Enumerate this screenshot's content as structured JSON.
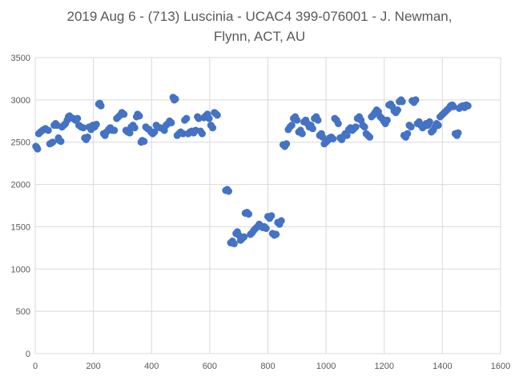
{
  "chart_data": {
    "type": "scatter",
    "title_lines": [
      "2019 Aug 6 - (713) Luscinia - UCAC4 399-076001 - J. Newman,",
      "Flynn, ACT, AU"
    ],
    "xlabel": "",
    "ylabel": "",
    "xlim": [
      0,
      1600
    ],
    "ylim": [
      0,
      3500
    ],
    "x_ticks": [
      "0",
      "200",
      "400",
      "600",
      "800",
      "1000",
      "1200",
      "1400",
      "1600"
    ],
    "y_ticks": [
      "0",
      "500",
      "1000",
      "1500",
      "2000",
      "2500",
      "3000",
      "3500"
    ],
    "grid": true,
    "legend": "none",
    "marker_color": "#4472C4",
    "gridline_color": "#D9D9D9",
    "series": [
      {
        "points": [
          [
            2,
            2450
          ],
          [
            5,
            2440
          ],
          [
            8,
            2420
          ],
          [
            12,
            2600
          ],
          [
            18,
            2620
          ],
          [
            25,
            2640
          ],
          [
            30,
            2650
          ],
          [
            35,
            2660
          ],
          [
            45,
            2640
          ],
          [
            50,
            2480
          ],
          [
            55,
            2490
          ],
          [
            60,
            2500
          ],
          [
            65,
            2700
          ],
          [
            70,
            2720
          ],
          [
            75,
            2700
          ],
          [
            80,
            2550
          ],
          [
            83,
            2520
          ],
          [
            88,
            2510
          ],
          [
            92,
            2680
          ],
          [
            98,
            2700
          ],
          [
            104,
            2720
          ],
          [
            110,
            2760
          ],
          [
            114,
            2800
          ],
          [
            118,
            2810
          ],
          [
            124,
            2790
          ],
          [
            130,
            2780
          ],
          [
            138,
            2760
          ],
          [
            145,
            2780
          ],
          [
            150,
            2700
          ],
          [
            158,
            2680
          ],
          [
            165,
            2670
          ],
          [
            170,
            2550
          ],
          [
            175,
            2530
          ],
          [
            180,
            2560
          ],
          [
            185,
            2680
          ],
          [
            192,
            2650
          ],
          [
            198,
            2700
          ],
          [
            204,
            2680
          ],
          [
            210,
            2710
          ],
          [
            218,
            2950
          ],
          [
            222,
            2960
          ],
          [
            226,
            2930
          ],
          [
            235,
            2600
          ],
          [
            240,
            2580
          ],
          [
            245,
            2620
          ],
          [
            252,
            2650
          ],
          [
            258,
            2670
          ],
          [
            265,
            2640
          ],
          [
            272,
            2640
          ],
          [
            280,
            2780
          ],
          [
            286,
            2800
          ],
          [
            292,
            2820
          ],
          [
            298,
            2850
          ],
          [
            305,
            2830
          ],
          [
            312,
            2640
          ],
          [
            318,
            2620
          ],
          [
            325,
            2610
          ],
          [
            330,
            2680
          ],
          [
            336,
            2700
          ],
          [
            342,
            2670
          ],
          [
            348,
            2800
          ],
          [
            352,
            2830
          ],
          [
            358,
            2810
          ],
          [
            364,
            2500
          ],
          [
            368,
            2520
          ],
          [
            374,
            2510
          ],
          [
            380,
            2680
          ],
          [
            386,
            2660
          ],
          [
            392,
            2650
          ],
          [
            398,
            2620
          ],
          [
            404,
            2600
          ],
          [
            410,
            2620
          ],
          [
            416,
            2700
          ],
          [
            422,
            2680
          ],
          [
            430,
            2670
          ],
          [
            438,
            2660
          ],
          [
            444,
            2640
          ],
          [
            450,
            2700
          ],
          [
            456,
            2720
          ],
          [
            462,
            2750
          ],
          [
            468,
            2730
          ],
          [
            474,
            3030
          ],
          [
            478,
            3000
          ],
          [
            482,
            3010
          ],
          [
            488,
            2580
          ],
          [
            494,
            2600
          ],
          [
            500,
            2620
          ],
          [
            508,
            2600
          ],
          [
            514,
            2760
          ],
          [
            520,
            2780
          ],
          [
            526,
            2600
          ],
          [
            532,
            2620
          ],
          [
            538,
            2630
          ],
          [
            545,
            2610
          ],
          [
            552,
            2640
          ],
          [
            558,
            2800
          ],
          [
            562,
            2780
          ],
          [
            568,
            2630
          ],
          [
            574,
            2600
          ],
          [
            580,
            2790
          ],
          [
            586,
            2810
          ],
          [
            592,
            2830
          ],
          [
            598,
            2780
          ],
          [
            604,
            2700
          ],
          [
            610,
            2670
          ],
          [
            616,
            2850
          ],
          [
            620,
            2840
          ],
          [
            626,
            2820
          ],
          [
            655,
            1930
          ],
          [
            660,
            1940
          ],
          [
            665,
            1920
          ],
          [
            672,
            1310
          ],
          [
            678,
            1330
          ],
          [
            684,
            1300
          ],
          [
            690,
            1420
          ],
          [
            695,
            1440
          ],
          [
            700,
            1400
          ],
          [
            706,
            1340
          ],
          [
            712,
            1360
          ],
          [
            718,
            1380
          ],
          [
            722,
            1660
          ],
          [
            728,
            1670
          ],
          [
            734,
            1650
          ],
          [
            740,
            1410
          ],
          [
            746,
            1430
          ],
          [
            752,
            1460
          ],
          [
            758,
            1480
          ],
          [
            764,
            1500
          ],
          [
            770,
            1530
          ],
          [
            776,
            1510
          ],
          [
            782,
            1490
          ],
          [
            788,
            1500
          ],
          [
            794,
            1480
          ],
          [
            800,
            1620
          ],
          [
            806,
            1600
          ],
          [
            812,
            1630
          ],
          [
            816,
            1420
          ],
          [
            822,
            1400
          ],
          [
            828,
            1410
          ],
          [
            834,
            1550
          ],
          [
            840,
            1530
          ],
          [
            846,
            1570
          ],
          [
            852,
            2470
          ],
          [
            858,
            2450
          ],
          [
            864,
            2480
          ],
          [
            870,
            2650
          ],
          [
            876,
            2680
          ],
          [
            882,
            2700
          ],
          [
            888,
            2780
          ],
          [
            894,
            2800
          ],
          [
            900,
            2760
          ],
          [
            906,
            2620
          ],
          [
            912,
            2640
          ],
          [
            918,
            2600
          ],
          [
            924,
            2740
          ],
          [
            930,
            2760
          ],
          [
            936,
            2720
          ],
          [
            942,
            2680
          ],
          [
            948,
            2700
          ],
          [
            954,
            2660
          ],
          [
            960,
            2780
          ],
          [
            966,
            2800
          ],
          [
            972,
            2760
          ],
          [
            978,
            2580
          ],
          [
            984,
            2600
          ],
          [
            988,
            2560
          ],
          [
            994,
            2480
          ],
          [
            1000,
            2500
          ],
          [
            1006,
            2520
          ],
          [
            1012,
            2550
          ],
          [
            1018,
            2560
          ],
          [
            1024,
            2540
          ],
          [
            1030,
            2780
          ],
          [
            1036,
            2760
          ],
          [
            1042,
            2720
          ],
          [
            1048,
            2550
          ],
          [
            1054,
            2530
          ],
          [
            1060,
            2570
          ],
          [
            1066,
            2600
          ],
          [
            1072,
            2580
          ],
          [
            1078,
            2650
          ],
          [
            1084,
            2670
          ],
          [
            1090,
            2640
          ],
          [
            1096,
            2660
          ],
          [
            1102,
            2680
          ],
          [
            1108,
            2780
          ],
          [
            1114,
            2800
          ],
          [
            1120,
            2760
          ],
          [
            1126,
            2700
          ],
          [
            1132,
            2680
          ],
          [
            1138,
            2600
          ],
          [
            1144,
            2580
          ],
          [
            1150,
            2560
          ],
          [
            1156,
            2800
          ],
          [
            1162,
            2820
          ],
          [
            1168,
            2850
          ],
          [
            1174,
            2880
          ],
          [
            1180,
            2860
          ],
          [
            1186,
            2800
          ],
          [
            1192,
            2780
          ],
          [
            1198,
            2750
          ],
          [
            1204,
            2720
          ],
          [
            1210,
            2760
          ],
          [
            1216,
            2940
          ],
          [
            1222,
            2950
          ],
          [
            1228,
            2920
          ],
          [
            1234,
            2870
          ],
          [
            1240,
            2850
          ],
          [
            1246,
            2880
          ],
          [
            1252,
            2980
          ],
          [
            1258,
            3000
          ],
          [
            1262,
            2980
          ],
          [
            1268,
            2580
          ],
          [
            1274,
            2560
          ],
          [
            1280,
            2600
          ],
          [
            1286,
            2700
          ],
          [
            1292,
            2680
          ],
          [
            1296,
            2990
          ],
          [
            1302,
            2970
          ],
          [
            1308,
            3000
          ],
          [
            1314,
            2720
          ],
          [
            1320,
            2740
          ],
          [
            1326,
            2700
          ],
          [
            1332,
            2670
          ],
          [
            1338,
            2690
          ],
          [
            1344,
            2720
          ],
          [
            1350,
            2700
          ],
          [
            1356,
            2740
          ],
          [
            1362,
            2620
          ],
          [
            1368,
            2640
          ],
          [
            1374,
            2680
          ],
          [
            1380,
            2720
          ],
          [
            1386,
            2700
          ],
          [
            1392,
            2800
          ],
          [
            1398,
            2820
          ],
          [
            1404,
            2840
          ],
          [
            1410,
            2860
          ],
          [
            1416,
            2880
          ],
          [
            1422,
            2900
          ],
          [
            1428,
            2930
          ],
          [
            1434,
            2940
          ],
          [
            1438,
            2920
          ],
          [
            1444,
            2600
          ],
          [
            1450,
            2580
          ],
          [
            1454,
            2610
          ],
          [
            1458,
            2900
          ],
          [
            1464,
            2920
          ],
          [
            1470,
            2930
          ],
          [
            1476,
            2910
          ],
          [
            1482,
            2940
          ],
          [
            1488,
            2930
          ]
        ]
      }
    ]
  }
}
